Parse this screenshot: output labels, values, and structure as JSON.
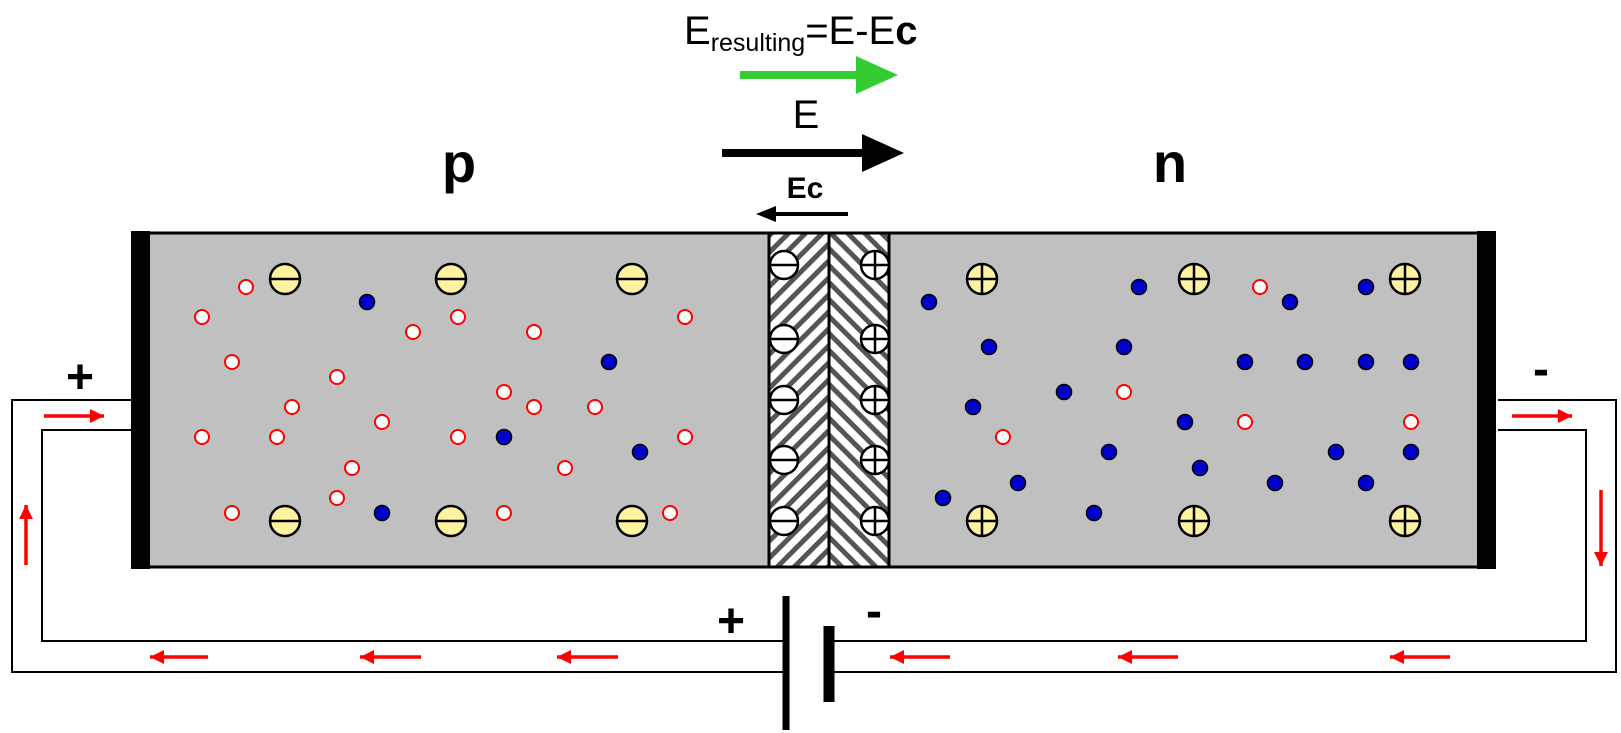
{
  "formula": {
    "main": "E",
    "subscript": "resulting",
    "rest": "=E-E",
    "last": "c"
  },
  "labels": {
    "p_region": "p",
    "n_region": "n",
    "field_E": "E",
    "field_Ec": "Ec",
    "plus_left": "+",
    "minus_right": "-",
    "battery_plus": "+",
    "battery_minus": "-"
  },
  "colors": {
    "resulting_arrow": "#33cc33",
    "field_arrow": "#000000",
    "current_arrow": "#ff0000",
    "crystal": "#c0c0c0",
    "ion": "#fff3a0",
    "electron": "#0000cc",
    "hole": "#ff0000"
  },
  "icons": {
    "acceptor_ion": "circle-minus",
    "donor_ion": "circle-plus",
    "electron": "filled-dot",
    "hole": "hollow-dot",
    "battery": "battery-symbol"
  }
}
